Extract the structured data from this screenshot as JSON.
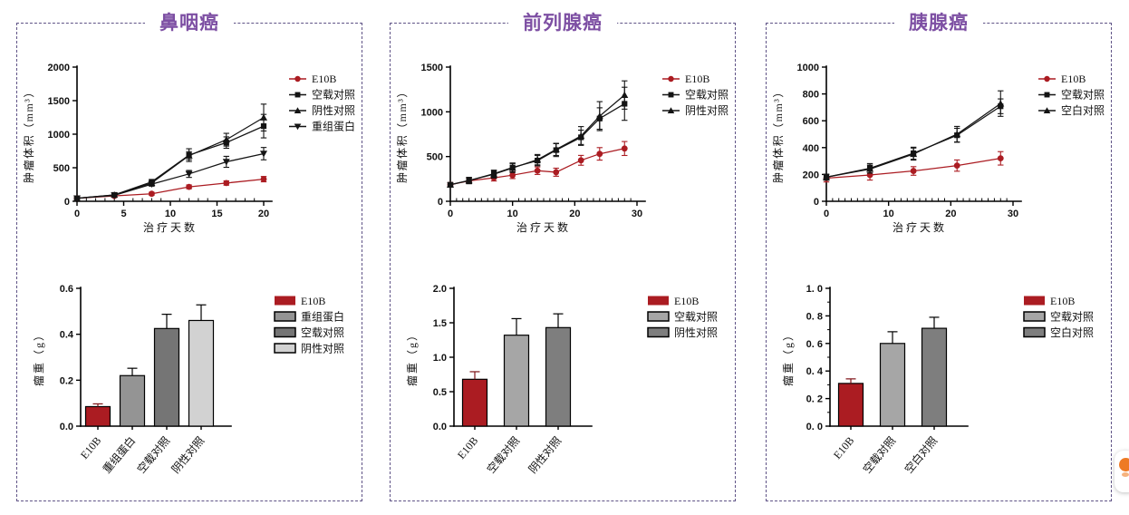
{
  "page": {
    "background": "#ffffff",
    "panel_border_color": "#5f5386",
    "title_color": "#7d4fa3",
    "accent_red": "#ab1c22",
    "badge_color": "#ee7a24"
  },
  "panels": [
    {
      "title": "鼻咽癌"
    },
    {
      "title": "前列腺癌"
    },
    {
      "title": "胰腺癌"
    }
  ],
  "chart_data": [
    {
      "panel": "鼻咽癌",
      "type": "line",
      "xlabel": "治疗天数",
      "ylabel": "肿瘤体积（mm³）",
      "xlim": [
        0,
        20
      ],
      "xticks": [
        0,
        5,
        10,
        15,
        20
      ],
      "x_minor_step": 1,
      "ylim": [
        0,
        2000
      ],
      "yticks": [
        0,
        500,
        1000,
        1500,
        2000
      ],
      "legend_position": "right",
      "x": [
        0,
        4,
        8,
        12,
        16,
        20
      ],
      "series": [
        {
          "name": "E10B",
          "marker": "circle",
          "color": "#ab1c22",
          "label_color": "#ab1c22",
          "values": [
            45,
            80,
            112,
            215,
            272,
            330
          ],
          "errors": [
            15,
            18,
            22,
            28,
            32,
            40
          ]
        },
        {
          "name": "空载对照",
          "marker": "square",
          "color": "#141414",
          "label_color": "#141414",
          "values": [
            45,
            95,
            290,
            688,
            875,
            1120
          ],
          "errors": [
            10,
            15,
            35,
            95,
            85,
            175
          ]
        },
        {
          "name": "阴性对照",
          "marker": "triangle-up",
          "color": "#141414",
          "label_color": "#141414",
          "values": [
            45,
            95,
            272,
            680,
            918,
            1248
          ],
          "errors": [
            10,
            15,
            32,
            60,
            95,
            200
          ]
        },
        {
          "name": "重组蛋白",
          "marker": "triangle-down",
          "color": "#141414",
          "label_color": "#141414",
          "values": [
            45,
            88,
            255,
            408,
            588,
            710
          ],
          "errors": [
            10,
            14,
            30,
            52,
            82,
            92
          ]
        }
      ]
    },
    {
      "panel": "鼻咽癌",
      "type": "bar",
      "ylabel": "瘤重（g）",
      "ylim": [
        0,
        0.6
      ],
      "ytick_values": [
        0,
        0.2,
        0.4,
        0.6
      ],
      "ytick_labels": [
        "0.0",
        "0.2",
        "0.4",
        "0.6"
      ],
      "categories": [
        "E10B",
        "重组蛋白",
        "空载对照",
        "阴性对照"
      ],
      "values": [
        0.085,
        0.22,
        0.425,
        0.46
      ],
      "errors": [
        0.012,
        0.032,
        0.062,
        0.068
      ],
      "bar_colors": [
        "#ab1c22",
        "#949494",
        "#757575",
        "#d2d2d2"
      ],
      "error_colors": [
        "#7e1216",
        "#000000",
        "#000000",
        "#000000"
      ],
      "legend": [
        {
          "label": "E10B",
          "color": "#ab1c22",
          "stroke": "none",
          "label_color": "#ab1c22"
        },
        {
          "label": "重组蛋白",
          "color": "#949494",
          "stroke": "#000000",
          "label_color": "#141414"
        },
        {
          "label": "空载对照",
          "color": "#757575",
          "stroke": "#000000",
          "label_color": "#141414"
        },
        {
          "label": "阴性对照",
          "color": "#d2d2d2",
          "stroke": "#000000",
          "label_color": "#141414"
        }
      ]
    },
    {
      "panel": "前列腺癌",
      "type": "line",
      "xlabel": "治疗天数",
      "ylabel": "肿瘤体积（mm³）",
      "xlim": [
        0,
        30
      ],
      "xticks": [
        0,
        10,
        20,
        30
      ],
      "x_minor_step": 1,
      "ylim": [
        0,
        1500
      ],
      "yticks": [
        0,
        500,
        1000,
        1500
      ],
      "legend_position": "right",
      "x": [
        0,
        3,
        7,
        10,
        14,
        17,
        21,
        24,
        28
      ],
      "series": [
        {
          "name": "E10B",
          "marker": "circle",
          "color": "#ab1c22",
          "label_color": "#ab1c22",
          "values": [
            185,
            228,
            262,
            292,
            342,
            325,
            458,
            530,
            590
          ],
          "errors": [
            25,
            30,
            35,
            38,
            42,
            45,
            55,
            70,
            78
          ]
        },
        {
          "name": "空载对照",
          "marker": "square",
          "color": "#141414",
          "label_color": "#141414",
          "values": [
            185,
            232,
            308,
            378,
            455,
            572,
            715,
            925,
            1090
          ],
          "errors": [
            22,
            35,
            40,
            50,
            58,
            72,
            80,
            120,
            185
          ]
        },
        {
          "name": "阴性对照",
          "marker": "triangle-up",
          "color": "#141414",
          "label_color": "#141414",
          "values": [
            185,
            232,
            302,
            372,
            465,
            580,
            730,
            952,
            1188
          ],
          "errors": [
            22,
            35,
            42,
            50,
            58,
            68,
            105,
            162,
            158
          ]
        }
      ]
    },
    {
      "panel": "前列腺癌",
      "type": "bar",
      "ylabel": "瘤重（g）",
      "ylim": [
        0,
        2.0
      ],
      "ytick_values": [
        0,
        0.5,
        1.0,
        1.5,
        2.0
      ],
      "ytick_labels": [
        "0.0",
        "0.5",
        "1.0",
        "1.5",
        "2.0"
      ],
      "categories": [
        "E10B",
        "空载对照",
        "阴性对照"
      ],
      "values": [
        0.68,
        1.32,
        1.43
      ],
      "errors": [
        0.11,
        0.24,
        0.2
      ],
      "bar_colors": [
        "#ab1c22",
        "#a6a6a6",
        "#7e7e7e"
      ],
      "error_colors": [
        "#7e1216",
        "#000000",
        "#000000"
      ],
      "legend": [
        {
          "label": "E10B",
          "color": "#ab1c22",
          "stroke": "none",
          "label_color": "#ab1c22"
        },
        {
          "label": "空载对照",
          "color": "#a6a6a6",
          "stroke": "#000000",
          "label_color": "#141414"
        },
        {
          "label": "阴性对照",
          "color": "#7e7e7e",
          "stroke": "#000000",
          "label_color": "#141414"
        }
      ]
    },
    {
      "panel": "胰腺癌",
      "type": "line",
      "xlabel": "治疗天数",
      "ylabel": "肿瘤体积（mm³）",
      "xlim": [
        0,
        30
      ],
      "xticks": [
        0,
        10,
        20,
        30
      ],
      "x_minor_step": 1,
      "ylim": [
        0,
        1000
      ],
      "yticks": [
        0,
        200,
        400,
        600,
        800,
        1000
      ],
      "legend_position": "right",
      "x": [
        0,
        7,
        14,
        21,
        28
      ],
      "series": [
        {
          "name": "E10B",
          "marker": "circle",
          "color": "#ab1c22",
          "label_color": "#ab1c22",
          "values": [
            172,
            196,
            226,
            266,
            320
          ],
          "errors": [
            28,
            38,
            32,
            42,
            50
          ]
        },
        {
          "name": "空载对照",
          "marker": "square",
          "color": "#141414",
          "label_color": "#141414",
          "values": [
            180,
            246,
            358,
            492,
            708
          ],
          "errors": [
            22,
            35,
            45,
            52,
            55
          ]
        },
        {
          "name": "空白对照",
          "marker": "triangle-up",
          "color": "#141414",
          "label_color": "#141414",
          "values": [
            180,
            240,
            352,
            500,
            728
          ],
          "errors": [
            22,
            30,
            45,
            58,
            95
          ]
        }
      ]
    },
    {
      "panel": "胰腺癌",
      "type": "bar",
      "ylabel": "瘤重（g）",
      "ylim": [
        0,
        1.0
      ],
      "ytick_values": [
        0,
        0.2,
        0.4,
        0.6,
        0.8,
        1.0
      ],
      "ytick_labels": [
        "0. 0",
        "0. 2",
        "0. 4",
        "0. 6",
        "0. 8",
        "1. 0"
      ],
      "y_minor_step": 0.1,
      "categories": [
        "E10B",
        "空载对照",
        "空白对照"
      ],
      "values": [
        0.31,
        0.6,
        0.71
      ],
      "errors": [
        0.033,
        0.085,
        0.08
      ],
      "bar_colors": [
        "#ab1c22",
        "#a6a6a6",
        "#7e7e7e"
      ],
      "error_colors": [
        "#7e1216",
        "#000000",
        "#000000"
      ],
      "legend": [
        {
          "label": "E10B",
          "color": "#ab1c22",
          "stroke": "none",
          "label_color": "#ab1c22"
        },
        {
          "label": "空载对照",
          "color": "#a6a6a6",
          "stroke": "#000000",
          "label_color": "#141414"
        },
        {
          "label": "空白对照",
          "color": "#7e7e7e",
          "stroke": "#000000",
          "label_color": "#141414"
        }
      ]
    }
  ]
}
